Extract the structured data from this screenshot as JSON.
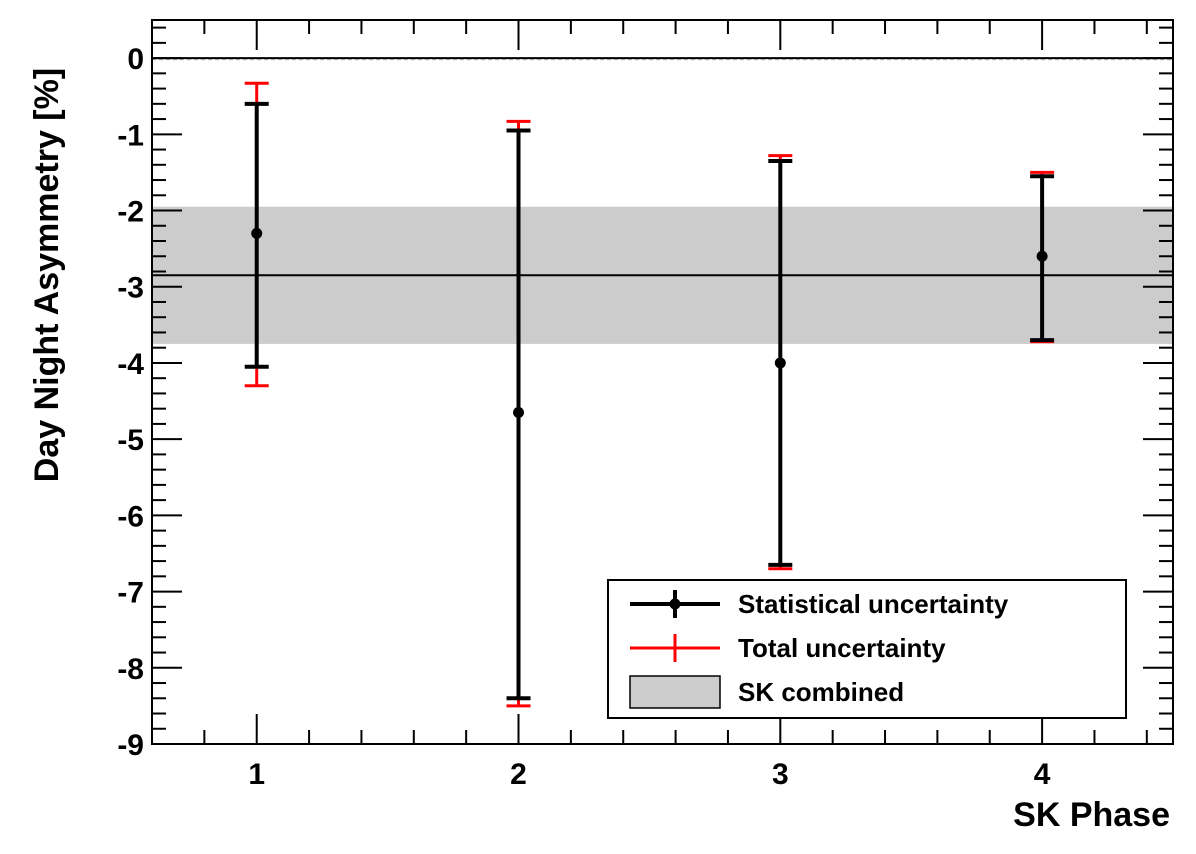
{
  "chart_data": {
    "type": "scatter",
    "xlabel": "SK Phase",
    "ylabel": "Day Night Asymmetry [%]",
    "xlim": [
      0.6,
      4.5
    ],
    "ylim": [
      -9,
      0.5
    ],
    "x_ticks": [
      1,
      2,
      3,
      4
    ],
    "y_ticks": [
      0,
      -1,
      -2,
      -3,
      -4,
      -5,
      -6,
      -7,
      -8,
      -9
    ],
    "reference_line": 0,
    "grid": false,
    "legend_position": "bottom-right",
    "points": [
      {
        "x": 1,
        "y": -2.3,
        "stat_low": -4.05,
        "stat_high": -0.6,
        "total_low": -4.3,
        "total_high": -0.33
      },
      {
        "x": 2,
        "y": -4.65,
        "stat_low": -8.4,
        "stat_high": -0.95,
        "total_low": -8.5,
        "total_high": -0.83
      },
      {
        "x": 3,
        "y": -4.0,
        "stat_low": -6.65,
        "stat_high": -1.35,
        "total_low": -6.7,
        "total_high": -1.28
      },
      {
        "x": 4,
        "y": -2.6,
        "stat_low": -3.7,
        "stat_high": -1.55,
        "total_low": -3.72,
        "total_high": -1.5
      }
    ],
    "combined": {
      "value": -2.85,
      "low": -3.75,
      "high": -1.95
    },
    "legend": [
      {
        "label": "Statistical uncertainty",
        "kind": "stat"
      },
      {
        "label": "Total uncertainty",
        "kind": "total"
      },
      {
        "label": "SK combined",
        "kind": "band"
      }
    ],
    "colors": {
      "stat": "#000000",
      "total": "#ff0000",
      "band": "#cccccc",
      "zero_line": "#999999"
    }
  }
}
